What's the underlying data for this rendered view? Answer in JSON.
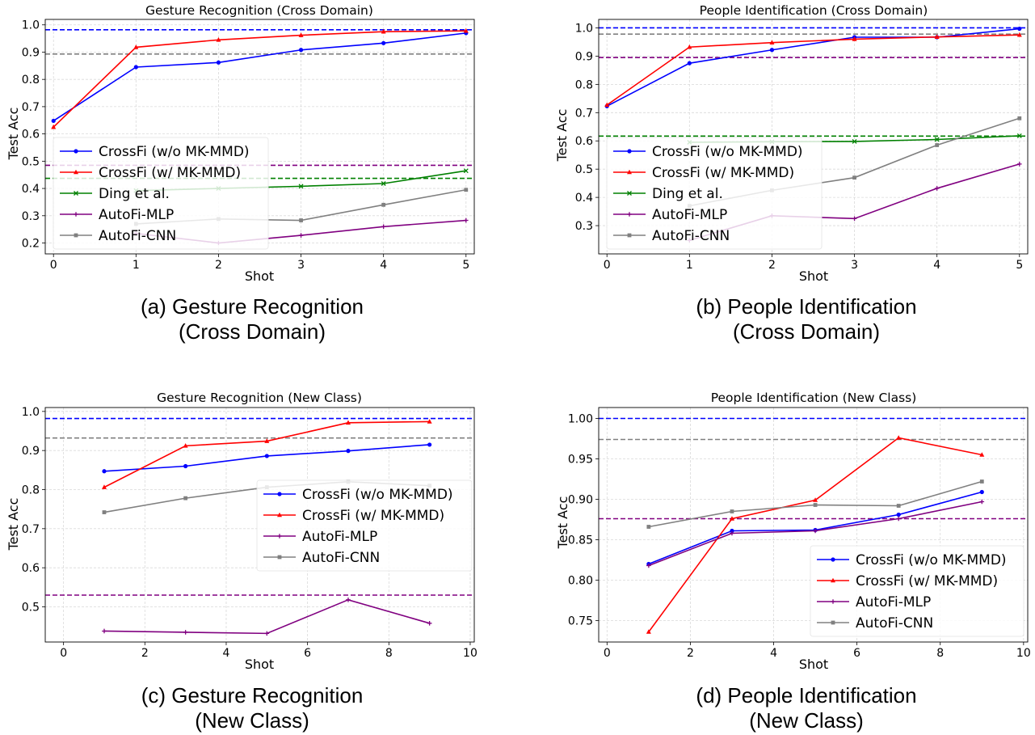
{
  "chart_data": [
    {
      "type": "line",
      "title": "Gesture Recognition (Cross Domain)",
      "xlabel": "Shot",
      "ylabel": "Test Acc",
      "xlim": [
        -0.1,
        5.1
      ],
      "ylim": [
        0.16,
        1.02
      ],
      "xticks": [
        0,
        1,
        2,
        3,
        4,
        5
      ],
      "yticks": [
        0.2,
        0.3,
        0.4,
        0.5,
        0.6,
        0.7,
        0.8,
        0.9,
        1.0
      ],
      "ytick_labels": [
        "0.2",
        "0.3",
        "0.4",
        "0.5",
        "0.6",
        "0.7",
        "0.8",
        "0.9",
        "1.0"
      ],
      "grid": true,
      "legend_position": "center-left",
      "series": [
        {
          "name": "CrossFi (w/o MK-MMD)",
          "color": "#0000ff",
          "marker": "circle",
          "x": [
            0,
            1,
            2,
            3,
            4,
            5
          ],
          "y": [
            0.648,
            0.845,
            0.862,
            0.908,
            0.933,
            0.97
          ]
        },
        {
          "name": "CrossFi (w/ MK-MMD)",
          "color": "#ff0000",
          "marker": "triangle",
          "x": [
            0,
            1,
            2,
            3,
            4,
            5
          ],
          "y": [
            0.625,
            0.918,
            0.945,
            0.962,
            0.975,
            0.978
          ]
        },
        {
          "name": "Ding et al.",
          "color": "#008000",
          "marker": "x",
          "x": [
            1,
            2,
            3,
            4,
            5
          ],
          "y": [
            0.392,
            0.4,
            0.408,
            0.418,
            0.465
          ]
        },
        {
          "name": "AutoFi-MLP",
          "color": "#800080",
          "marker": "plus",
          "x": [
            1,
            2,
            3,
            4,
            5
          ],
          "y": [
            0.235,
            0.2,
            0.228,
            0.26,
            0.283
          ]
        },
        {
          "name": "AutoFi-CNN",
          "color": "#808080",
          "marker": "square",
          "x": [
            1,
            2,
            3,
            4,
            5
          ],
          "y": [
            0.27,
            0.288,
            0.283,
            0.34,
            0.395
          ]
        }
      ],
      "reference_lines": [
        {
          "y": 0.982,
          "color": "#0000ff"
        },
        {
          "y": 0.893,
          "color": "#808080"
        },
        {
          "y": 0.485,
          "color": "#800080"
        },
        {
          "y": 0.437,
          "color": "#008000"
        }
      ],
      "caption": [
        "(a) Gesture Recognition",
        "(Cross Domain)"
      ]
    },
    {
      "type": "line",
      "title": "People Identification (Cross Domain)",
      "xlabel": "Shot",
      "ylabel": "Test Acc",
      "xlim": [
        -0.1,
        5.1
      ],
      "ylim": [
        0.2,
        1.03
      ],
      "xticks": [
        0,
        1,
        2,
        3,
        4,
        5
      ],
      "yticks": [
        0.3,
        0.4,
        0.5,
        0.6,
        0.7,
        0.8,
        0.9,
        1.0
      ],
      "ytick_labels": [
        "0.3",
        "0.4",
        "0.5",
        "0.6",
        "0.7",
        "0.8",
        "0.9",
        "1.0"
      ],
      "grid": true,
      "legend_position": "center-left",
      "series": [
        {
          "name": "CrossFi (w/o MK-MMD)",
          "color": "#0000ff",
          "marker": "circle",
          "x": [
            0,
            1,
            2,
            3,
            4,
            5
          ],
          "y": [
            0.723,
            0.875,
            0.922,
            0.967,
            0.967,
            0.997
          ]
        },
        {
          "name": "CrossFi (w/ MK-MMD)",
          "color": "#ff0000",
          "marker": "triangle",
          "x": [
            0,
            1,
            2,
            3,
            4,
            5
          ],
          "y": [
            0.727,
            0.932,
            0.948,
            0.96,
            0.968,
            0.975
          ]
        },
        {
          "name": "Ding et al.",
          "color": "#008000",
          "marker": "x",
          "x": [
            1,
            2,
            3,
            4,
            5
          ],
          "y": [
            0.595,
            0.597,
            0.598,
            0.605,
            0.618
          ]
        },
        {
          "name": "AutoFi-MLP",
          "color": "#800080",
          "marker": "plus",
          "x": [
            1,
            2,
            3,
            4,
            5
          ],
          "y": [
            0.248,
            0.335,
            0.325,
            0.432,
            0.518
          ]
        },
        {
          "name": "AutoFi-CNN",
          "color": "#808080",
          "marker": "square",
          "x": [
            1,
            2,
            3,
            4,
            5
          ],
          "y": [
            0.37,
            0.425,
            0.47,
            0.585,
            0.68
          ]
        }
      ],
      "reference_lines": [
        {
          "y": 1.0,
          "color": "#0000ff"
        },
        {
          "y": 0.978,
          "color": "#808080"
        },
        {
          "y": 0.895,
          "color": "#800080"
        },
        {
          "y": 0.617,
          "color": "#008000"
        }
      ],
      "caption": [
        "(b) People Identification",
        "(Cross Domain)"
      ]
    },
    {
      "type": "line",
      "title": "Gesture Recognition (New Class)",
      "xlabel": "Shot",
      "ylabel": "Test Acc",
      "xlim": [
        -0.45,
        10.1
      ],
      "ylim": [
        0.41,
        1.01
      ],
      "xticks": [
        0,
        2,
        4,
        6,
        8,
        10
      ],
      "yticks": [
        0.5,
        0.6,
        0.7,
        0.8,
        0.9,
        1.0
      ],
      "ytick_labels": [
        "0.5",
        "0.6",
        "0.7",
        "0.8",
        "0.9",
        "1.0"
      ],
      "grid": true,
      "legend_position": "center-right",
      "series": [
        {
          "name": "CrossFi (w/o MK-MMD)",
          "color": "#0000ff",
          "marker": "circle",
          "x": [
            1,
            3,
            5,
            7,
            9
          ],
          "y": [
            0.847,
            0.86,
            0.886,
            0.899,
            0.915
          ]
        },
        {
          "name": "CrossFi (w/ MK-MMD)",
          "color": "#ff0000",
          "marker": "triangle",
          "x": [
            1,
            3,
            5,
            7,
            9
          ],
          "y": [
            0.806,
            0.912,
            0.924,
            0.971,
            0.974
          ]
        },
        {
          "name": "AutoFi-MLP",
          "color": "#800080",
          "marker": "plus",
          "x": [
            1,
            3,
            5,
            7,
            9
          ],
          "y": [
            0.438,
            0.435,
            0.432,
            0.518,
            0.458
          ]
        },
        {
          "name": "AutoFi-CNN",
          "color": "#808080",
          "marker": "square",
          "x": [
            1,
            3,
            5,
            7,
            9
          ],
          "y": [
            0.742,
            0.778,
            0.806,
            0.82,
            0.81
          ]
        }
      ],
      "reference_lines": [
        {
          "y": 0.982,
          "color": "#0000ff"
        },
        {
          "y": 0.932,
          "color": "#808080"
        },
        {
          "y": 0.53,
          "color": "#800080"
        }
      ],
      "caption": [
        "(c) Gesture Recognition",
        "(New Class)"
      ]
    },
    {
      "type": "line",
      "title": "People Identification (New Class)",
      "xlabel": "Shot",
      "ylabel": "Test Acc",
      "xlim": [
        -0.2,
        10.1
      ],
      "ylim": [
        0.7235,
        1.0135
      ],
      "xticks": [
        0,
        2,
        4,
        6,
        8,
        10
      ],
      "yticks": [
        0.75,
        0.8,
        0.85,
        0.9,
        0.95,
        1.0
      ],
      "ytick_labels": [
        "0.75",
        "0.80",
        "0.85",
        "0.90",
        "0.95",
        "1.00"
      ],
      "grid": true,
      "legend_position": "bottom-right",
      "series": [
        {
          "name": "CrossFi (w/o MK-MMD)",
          "color": "#0000ff",
          "marker": "circle",
          "x": [
            1,
            3,
            5,
            7,
            9
          ],
          "y": [
            0.82,
            0.861,
            0.862,
            0.881,
            0.909
          ]
        },
        {
          "name": "CrossFi (w/ MK-MMD)",
          "color": "#ff0000",
          "marker": "triangle",
          "x": [
            1,
            3,
            5,
            7,
            9
          ],
          "y": [
            0.736,
            0.876,
            0.899,
            0.976,
            0.955
          ]
        },
        {
          "name": "AutoFi-MLP",
          "color": "#800080",
          "marker": "plus",
          "x": [
            1,
            3,
            5,
            7,
            9
          ],
          "y": [
            0.818,
            0.858,
            0.861,
            0.876,
            0.897
          ]
        },
        {
          "name": "AutoFi-CNN",
          "color": "#808080",
          "marker": "square",
          "x": [
            1,
            3,
            5,
            7,
            9
          ],
          "y": [
            0.866,
            0.885,
            0.893,
            0.892,
            0.922
          ]
        }
      ],
      "reference_lines": [
        {
          "y": 1.0,
          "color": "#0000ff"
        },
        {
          "y": 0.974,
          "color": "#808080"
        },
        {
          "y": 0.876,
          "color": "#800080"
        }
      ],
      "caption": [
        "(d) People Identification",
        "(New Class)"
      ]
    }
  ]
}
